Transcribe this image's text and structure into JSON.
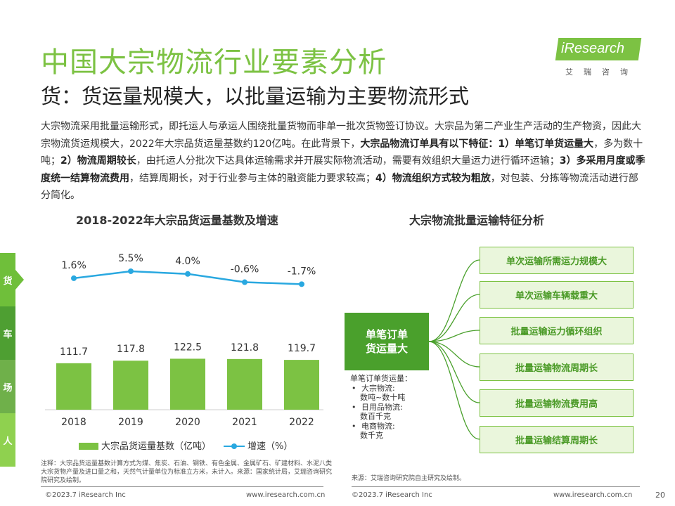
{
  "header": {
    "title": "中国大宗物流行业要素分析",
    "subtitle": "货：货运量规模大，以批量运输为主要物流形式"
  },
  "logo": {
    "text": "iResearch",
    "cn": "艾瑞咨询",
    "color": "#7cc243"
  },
  "intro": {
    "p1": "大宗物流采用批量运输形式，即托运人与承运人围绕批量货物而非单一批次货物签订协议。大宗品为第二产业生产活动的生产物资，因此大宗物流货运规模大，2022年大宗品货运量基数约120亿吨。在此背景下，",
    "b1": "大宗品物流订单具有以下特征：1）单笔订单货运量大",
    "p2": "，多为数十吨；",
    "b2": "2）物流周期较长",
    "p3": "，由托运人分批次下达具体运输需求并开展实际物流活动，需要有效组织大量运力进行循环运输；",
    "b3": "3）多采用月度或季度统一结算物流费用",
    "p4": "，结算周期长，对于行业参与主体的融资能力要求较高；",
    "b4": "4）物流组织方式较为粗放",
    "p5": "，对包装、分拣等物流活动进行部分简化。"
  },
  "side_tabs": [
    "货",
    "车",
    "场",
    "人"
  ],
  "left_chart_title": "2018-2022年大宗品货运量基数及增速",
  "right_chart_title": "大宗物流批量运输特征分析",
  "chart_data": {
    "type": "bar",
    "categories": [
      "2018",
      "2019",
      "2020",
      "2021",
      "2022"
    ],
    "series": [
      {
        "name": "大宗品货运量基数（亿吨）",
        "type": "bar",
        "values": [
          111.7,
          117.8,
          122.5,
          121.8,
          119.7
        ],
        "labels": [
          "111.7",
          "117.8",
          "122.5",
          "121.8",
          "119.7"
        ]
      },
      {
        "name": "增速（%）",
        "type": "line",
        "values": [
          1.6,
          5.5,
          4.0,
          -0.6,
          -1.7
        ],
        "labels": [
          "1.6%",
          "5.5%",
          "4.0%",
          "-0.6%",
          "-1.7%"
        ]
      }
    ],
    "colors": {
      "bar": "#7cc243",
      "line": "#29a8e0"
    }
  },
  "diagram": {
    "center_line1": "单笔订单",
    "center_line2": "货运量大",
    "features": [
      "单次运输所需运力规模大",
      "单次运输车辆载重大",
      "批量运输运力循环组织",
      "批量运输物流周期长",
      "批量运输物流费用高",
      "批量运输结算周期长"
    ],
    "list_title": "单笔订单货运量：",
    "list_items": [
      {
        "name": "大宗物流:",
        "value": "数吨~数十吨"
      },
      {
        "name": "日用品物流:",
        "value": "数百千克"
      },
      {
        "name": "电商物流:",
        "value": "数千克"
      }
    ]
  },
  "notes": {
    "left": "注释：大宗品货运量基数计算方式为煤、焦炭、石油、钢铁、有色金属、金属矿石、矿建材料、水泥八类大宗货物产量及进口量之和，天然气计量单位为标准立方米，未计入。来源：国家统计局，艾瑞咨询研究院研究及绘制。",
    "right": "来源：艾瑞咨询研究院自主研究及绘制。"
  },
  "footer": {
    "copyright_left": "©2023.7 iResearch Inc",
    "url_left": "www.iresearch.com.cn",
    "copyright_right": "©2023.7 iResearch Inc",
    "url_right": "www.iresearch.com.cn",
    "page": "20"
  }
}
